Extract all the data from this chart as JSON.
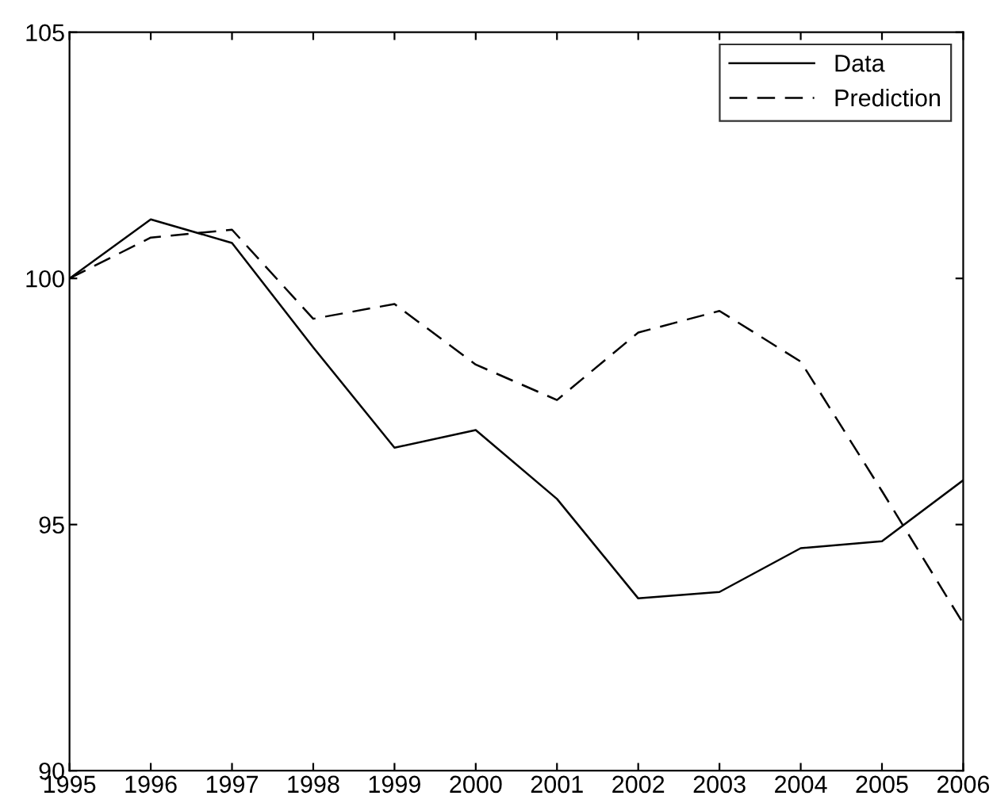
{
  "chart_data": {
    "type": "line",
    "x": [
      1995,
      1996,
      1997,
      1998,
      1999,
      2000,
      2001,
      2002,
      2003,
      2004,
      2005,
      2006
    ],
    "series": [
      {
        "name": "Data",
        "color": "#000000",
        "line_style": "solid",
        "values": [
          100,
          101.2,
          100.72,
          98.6,
          96.56,
          96.92,
          95.52,
          93.5,
          93.63,
          94.52,
          94.66,
          95.9
        ]
      },
      {
        "name": "Prediction",
        "color": "#000000",
        "line_style": "dashed",
        "values": [
          100,
          100.83,
          100.99,
          99.18,
          99.48,
          98.25,
          97.53,
          98.9,
          99.34,
          98.31,
          95.68,
          92.99
        ]
      }
    ],
    "xlim": [
      1995,
      2006
    ],
    "xticks": [
      1995,
      1996,
      1997,
      1998,
      1999,
      2000,
      2001,
      2002,
      2003,
      2004,
      2005,
      2006
    ],
    "ylim": [
      90,
      105
    ],
    "yticks": [
      90,
      95,
      100,
      105
    ],
    "grid": false,
    "legend": "top right",
    "marker": "none"
  }
}
